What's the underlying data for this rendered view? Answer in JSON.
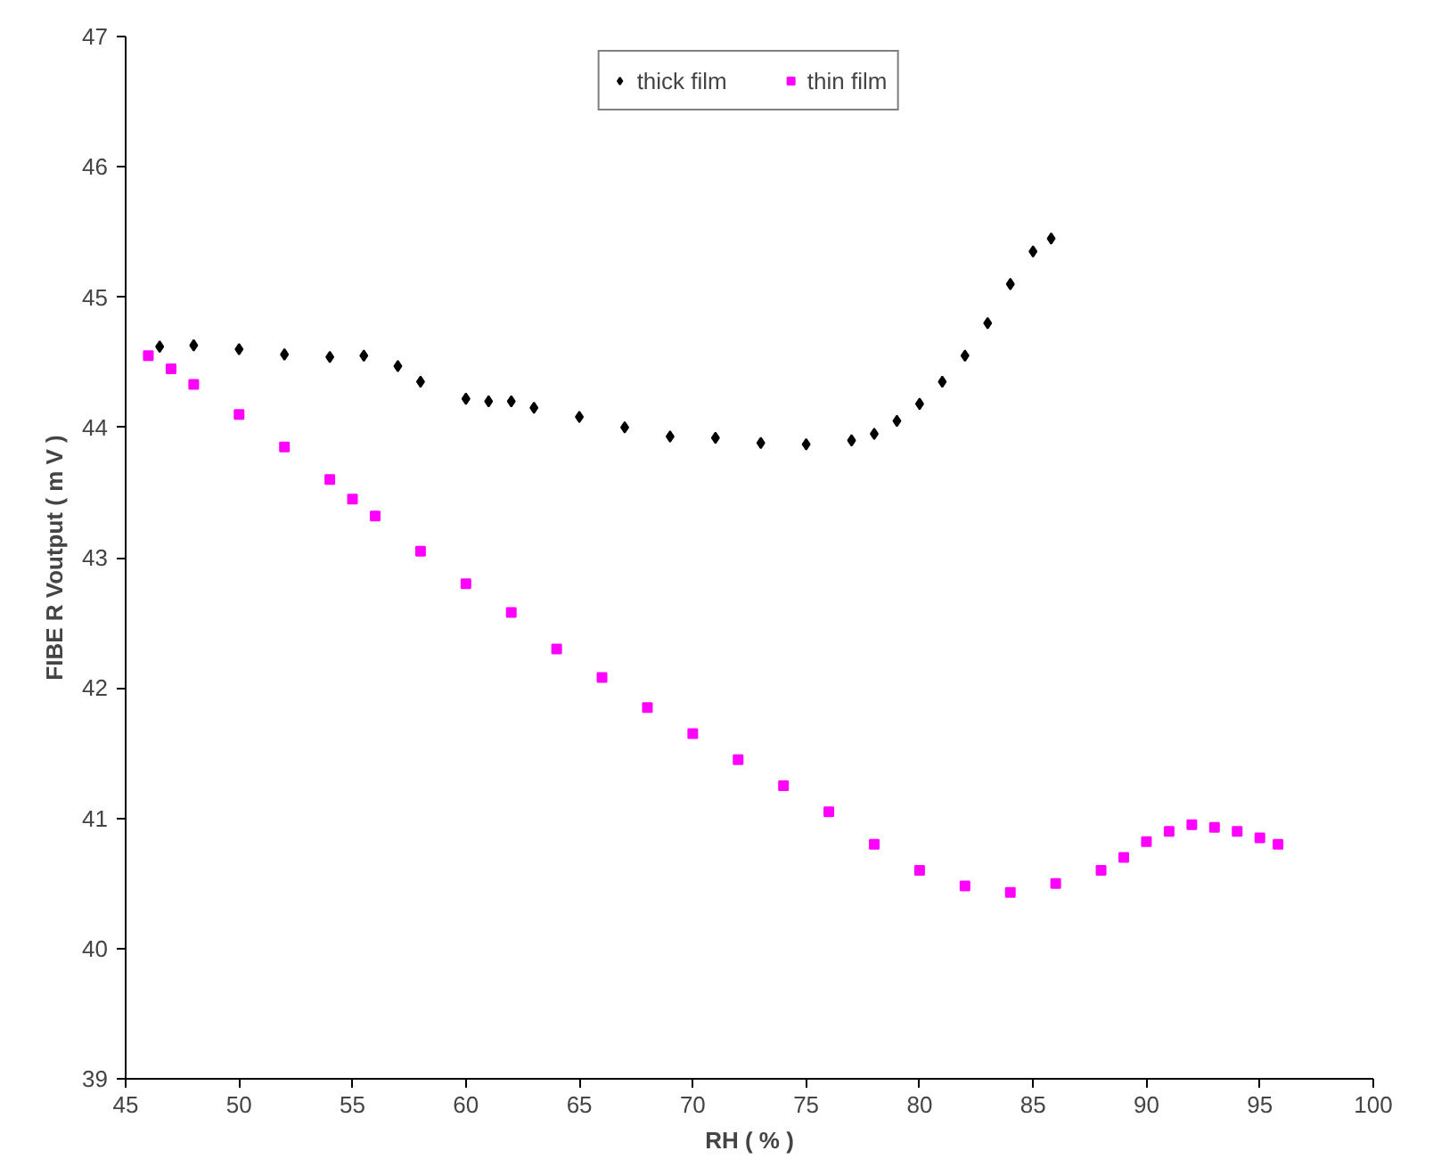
{
  "chart_data": {
    "type": "scatter",
    "xlabel": "RH ( % )",
    "ylabel": "FIBE R Voutput ( m V )",
    "xlim": [
      45,
      100
    ],
    "xticks": [
      45,
      50,
      55,
      60,
      65,
      70,
      75,
      80,
      85,
      90,
      95,
      100
    ],
    "ylim": [
      39,
      47
    ],
    "yticks": [
      39,
      40,
      41,
      42,
      43,
      44,
      45,
      46,
      47
    ],
    "grid": false,
    "legend": "top",
    "series": [
      {
        "name": "thick film",
        "color": "#000000",
        "marker": "diamond",
        "x": [
          46.5,
          48,
          50,
          52,
          54,
          55.5,
          57,
          58,
          60,
          61,
          62,
          63,
          65,
          67,
          69,
          71,
          73,
          75,
          77,
          78,
          79,
          80,
          81,
          82,
          83,
          84,
          85,
          85.8
        ],
        "values": [
          44.62,
          44.63,
          44.6,
          44.56,
          44.54,
          44.55,
          44.47,
          44.35,
          44.22,
          44.2,
          44.2,
          44.15,
          44.08,
          44.0,
          43.93,
          43.92,
          43.88,
          43.87,
          43.9,
          43.95,
          44.05,
          44.18,
          44.35,
          44.55,
          44.8,
          45.1,
          45.35,
          45.45
        ]
      },
      {
        "name": "thin film",
        "color": "#ff00ff",
        "marker": "square",
        "x": [
          46,
          47,
          48,
          50,
          52,
          54,
          55,
          56,
          58,
          60,
          62,
          64,
          66,
          68,
          70,
          72,
          74,
          76,
          78,
          80,
          82,
          84,
          86,
          88,
          89,
          90,
          91,
          92,
          93,
          94,
          95,
          95.8
        ],
        "values": [
          44.55,
          44.45,
          44.33,
          44.1,
          43.85,
          43.6,
          43.45,
          43.32,
          43.05,
          42.8,
          42.58,
          42.3,
          42.08,
          41.85,
          41.65,
          41.45,
          41.25,
          41.05,
          40.8,
          40.6,
          40.48,
          40.43,
          40.5,
          40.6,
          40.7,
          40.82,
          40.9,
          40.95,
          40.93,
          40.9,
          40.85,
          40.8
        ]
      }
    ]
  }
}
